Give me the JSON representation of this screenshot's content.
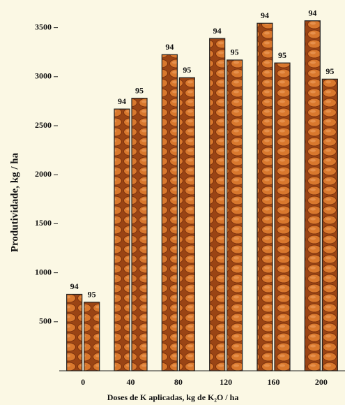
{
  "chart_data": {
    "type": "bar",
    "y_label": "Produtividade, kg / ha",
    "x_label": "Doses de K aplicadas, kg de K₂O / ha",
    "categories": [
      "0",
      "40",
      "80",
      "120",
      "160",
      "200"
    ],
    "series": [
      {
        "name": "94",
        "color": "#d9782d",
        "values": [
          780,
          2670,
          3225,
          3390,
          3545,
          3570
        ]
      },
      {
        "name": "95",
        "color": "#d9782d",
        "values": [
          700,
          2780,
          2990,
          3170,
          3140,
          2975
        ]
      }
    ],
    "ylim": [
      0,
      3750
    ],
    "yticks": [
      500,
      1000,
      1500,
      2000,
      2500,
      3000,
      3500
    ]
  }
}
